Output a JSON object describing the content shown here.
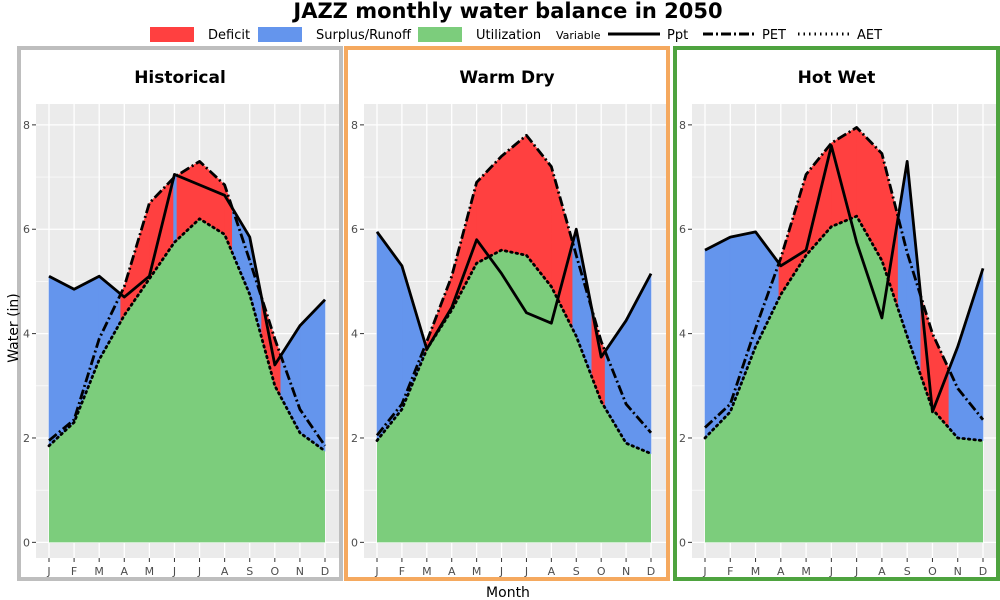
{
  "chart_data": {
    "type": "area",
    "title": "JAZZ monthly water balance in 2050",
    "xlabel": "Month",
    "ylabel": "Water (in)",
    "categories": [
      "J",
      "F",
      "M",
      "A",
      "M",
      "J",
      "J",
      "A",
      "S",
      "O",
      "N",
      "D"
    ],
    "ylim": [
      -0.3,
      8.4
    ],
    "yticks": [
      0,
      2,
      4,
      6,
      8
    ],
    "grid": true,
    "legend": {
      "placement": "top",
      "fill_items": [
        {
          "label": "Deficit",
          "color": "#ff4040"
        },
        {
          "label": "Surplus/Runoff",
          "color": "#6495ed"
        },
        {
          "label": "Utilization",
          "color": "#7ccd7c"
        }
      ],
      "variable_title": "Variable",
      "line_items": [
        {
          "label": "Ppt",
          "dash": "solid"
        },
        {
          "label": "PET",
          "dash": "dashdot"
        },
        {
          "label": "AET",
          "dash": "dotted"
        }
      ]
    },
    "panels": [
      {
        "title": "Historical",
        "border_color": "#bebebe",
        "series": [
          {
            "name": "Ppt",
            "values": [
              5.1,
              4.85,
              5.1,
              4.7,
              5.1,
              7.05,
              6.85,
              6.65,
              5.85,
              3.4,
              4.15,
              4.65
            ]
          },
          {
            "name": "PET",
            "values": [
              1.95,
              2.35,
              3.9,
              4.9,
              6.5,
              7.0,
              7.3,
              6.85,
              5.4,
              3.9,
              2.55,
              1.85
            ]
          },
          {
            "name": "AET",
            "values": [
              1.85,
              2.3,
              3.5,
              4.35,
              5.05,
              5.75,
              6.2,
              5.9,
              4.75,
              3.0,
              2.1,
              1.75
            ]
          }
        ]
      },
      {
        "title": "Warm Dry",
        "border_color": "#f5a95f",
        "series": [
          {
            "name": "Ppt",
            "values": [
              5.95,
              5.3,
              3.7,
              4.5,
              5.8,
              5.15,
              4.4,
              4.2,
              6.0,
              3.55,
              4.25,
              5.15
            ]
          },
          {
            "name": "PET",
            "values": [
              2.05,
              2.65,
              3.85,
              5.1,
              6.9,
              7.4,
              7.8,
              7.2,
              5.5,
              3.85,
              2.65,
              2.1
            ]
          },
          {
            "name": "AET",
            "values": [
              1.95,
              2.55,
              3.7,
              4.45,
              5.35,
              5.6,
              5.5,
              4.9,
              3.95,
              2.7,
              1.9,
              1.7
            ]
          }
        ]
      },
      {
        "title": "Hot Wet",
        "border_color": "#4ea33f",
        "series": [
          {
            "name": "Ppt",
            "values": [
              5.6,
              5.85,
              5.95,
              5.3,
              5.6,
              7.6,
              5.75,
              4.3,
              7.3,
              2.5,
              3.75,
              5.25
            ]
          },
          {
            "name": "PET",
            "values": [
              2.2,
              2.65,
              4.1,
              5.45,
              7.05,
              7.65,
              7.95,
              7.45,
              5.55,
              4.0,
              2.95,
              2.35
            ]
          },
          {
            "name": "AET",
            "values": [
              2.0,
              2.5,
              3.75,
              4.75,
              5.5,
              6.05,
              6.25,
              5.4,
              3.95,
              2.55,
              2.0,
              1.95
            ]
          }
        ]
      }
    ]
  }
}
